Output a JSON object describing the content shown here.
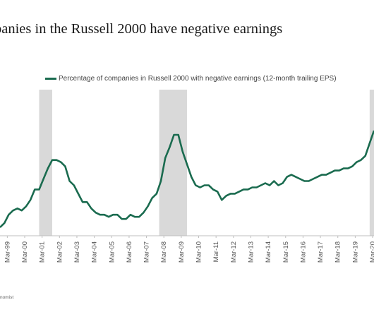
{
  "title": "panies in the Russell 2000 have negative earnings",
  "source": "nomist",
  "colors": {
    "line": "#1a6b4f",
    "recession": "#d9d9d9"
  },
  "chart_data": {
    "type": "line",
    "title": "panies in the Russell 2000 have negative earnings",
    "xlabel": "",
    "ylabel": "",
    "grid": false,
    "legend_position": "top-center",
    "xlim": [
      1998.75,
      2020.25
    ],
    "ylim": [
      0,
      1
    ],
    "y_units_note_hidden": true,
    "categories": [
      "Mar-99",
      "Mar-00",
      "Mar-01",
      "Mar-02",
      "Mar-03",
      "Mar-04",
      "Mar-05",
      "Mar-06",
      "Mar-07",
      "Mar-08",
      "Mar-09",
      "Mar-10",
      "Mar-11",
      "Mar-12",
      "Mar-13",
      "Mar-14",
      "Mar-15",
      "Mar-16",
      "Mar-17",
      "Mar-18",
      "Mar-19",
      "Mar-20"
    ],
    "recessions": [
      [
        2001.0,
        2001.75
      ],
      [
        2007.9,
        2009.5
      ],
      [
        2020.0,
        2020.5
      ]
    ],
    "series": [
      {
        "name": "Percentage of companies in Russell 2000 with negative earnings (12-month trailing EPS)",
        "x": [
          1998.75,
          1999.0,
          1999.25,
          1999.5,
          1999.75,
          2000.0,
          2000.25,
          2000.5,
          2000.75,
          2001.0,
          2001.25,
          2001.5,
          2001.75,
          2002.0,
          2002.25,
          2002.5,
          2002.75,
          2003.0,
          2003.25,
          2003.5,
          2003.75,
          2004.0,
          2004.25,
          2004.5,
          2004.75,
          2005.0,
          2005.25,
          2005.5,
          2005.75,
          2006.0,
          2006.25,
          2006.5,
          2006.75,
          2007.0,
          2007.25,
          2007.5,
          2007.75,
          2008.0,
          2008.25,
          2008.5,
          2008.75,
          2009.0,
          2009.25,
          2009.5,
          2009.75,
          2010.0,
          2010.25,
          2010.5,
          2010.75,
          2011.0,
          2011.25,
          2011.5,
          2011.75,
          2012.0,
          2012.25,
          2012.5,
          2012.75,
          2013.0,
          2013.25,
          2013.5,
          2013.75,
          2014.0,
          2014.25,
          2014.5,
          2014.75,
          2015.0,
          2015.25,
          2015.5,
          2015.75,
          2016.0,
          2016.25,
          2016.5,
          2016.75,
          2017.0,
          2017.25,
          2017.5,
          2017.75,
          2018.0,
          2018.25,
          2018.5,
          2018.75,
          2019.0,
          2019.25,
          2019.5,
          2019.75,
          2020.0,
          2020.25
        ],
        "values": [
          0.04,
          0.06,
          0.1,
          0.12,
          0.13,
          0.12,
          0.14,
          0.17,
          0.22,
          0.22,
          0.27,
          0.32,
          0.36,
          0.36,
          0.35,
          0.33,
          0.26,
          0.24,
          0.2,
          0.16,
          0.16,
          0.13,
          0.11,
          0.1,
          0.1,
          0.09,
          0.1,
          0.1,
          0.08,
          0.08,
          0.1,
          0.09,
          0.09,
          0.11,
          0.14,
          0.18,
          0.2,
          0.26,
          0.37,
          0.42,
          0.48,
          0.48,
          0.4,
          0.34,
          0.28,
          0.24,
          0.23,
          0.24,
          0.24,
          0.22,
          0.21,
          0.17,
          0.19,
          0.2,
          0.2,
          0.21,
          0.22,
          0.22,
          0.23,
          0.23,
          0.24,
          0.25,
          0.24,
          0.26,
          0.24,
          0.25,
          0.28,
          0.29,
          0.28,
          0.27,
          0.26,
          0.26,
          0.27,
          0.28,
          0.29,
          0.29,
          0.3,
          0.31,
          0.31,
          0.32,
          0.32,
          0.33,
          0.35,
          0.36,
          0.38,
          0.44,
          0.5
        ]
      }
    ]
  }
}
